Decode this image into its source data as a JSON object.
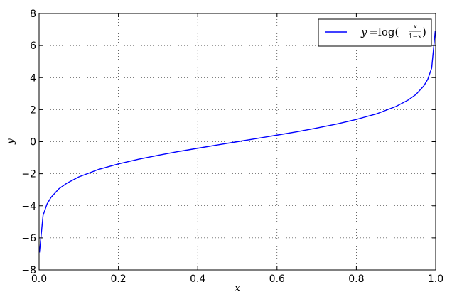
{
  "chart_data": {
    "type": "line",
    "xlabel": "x",
    "ylabel": "y",
    "xlim": [
      0.0,
      1.0
    ],
    "ylim": [
      -8,
      8
    ],
    "grid": true,
    "legend_position": "top-right",
    "xticks": [
      "0.0",
      "0.2",
      "0.4",
      "0.6",
      "0.8",
      "1.0"
    ],
    "yticks": [
      "8",
      "6",
      "4",
      "2",
      "0",
      "−2",
      "−4",
      "−6",
      "−8"
    ],
    "series": [
      {
        "name": "y = log(x/(1−x))",
        "color": "#0000ff",
        "x": [
          0.001,
          0.01,
          0.02,
          0.03,
          0.05,
          0.07,
          0.1,
          0.15,
          0.2,
          0.25,
          0.3,
          0.35,
          0.4,
          0.45,
          0.5,
          0.55,
          0.6,
          0.65,
          0.7,
          0.75,
          0.8,
          0.85,
          0.9,
          0.93,
          0.95,
          0.97,
          0.98,
          0.99,
          0.999
        ],
        "y": [
          -6.91,
          -4.6,
          -3.89,
          -3.48,
          -2.94,
          -2.59,
          -2.2,
          -1.73,
          -1.39,
          -1.1,
          -0.85,
          -0.62,
          -0.41,
          -0.2,
          0.0,
          0.2,
          0.41,
          0.62,
          0.85,
          1.1,
          1.39,
          1.73,
          2.2,
          2.59,
          2.94,
          3.48,
          3.89,
          4.6,
          6.91
        ]
      }
    ]
  }
}
